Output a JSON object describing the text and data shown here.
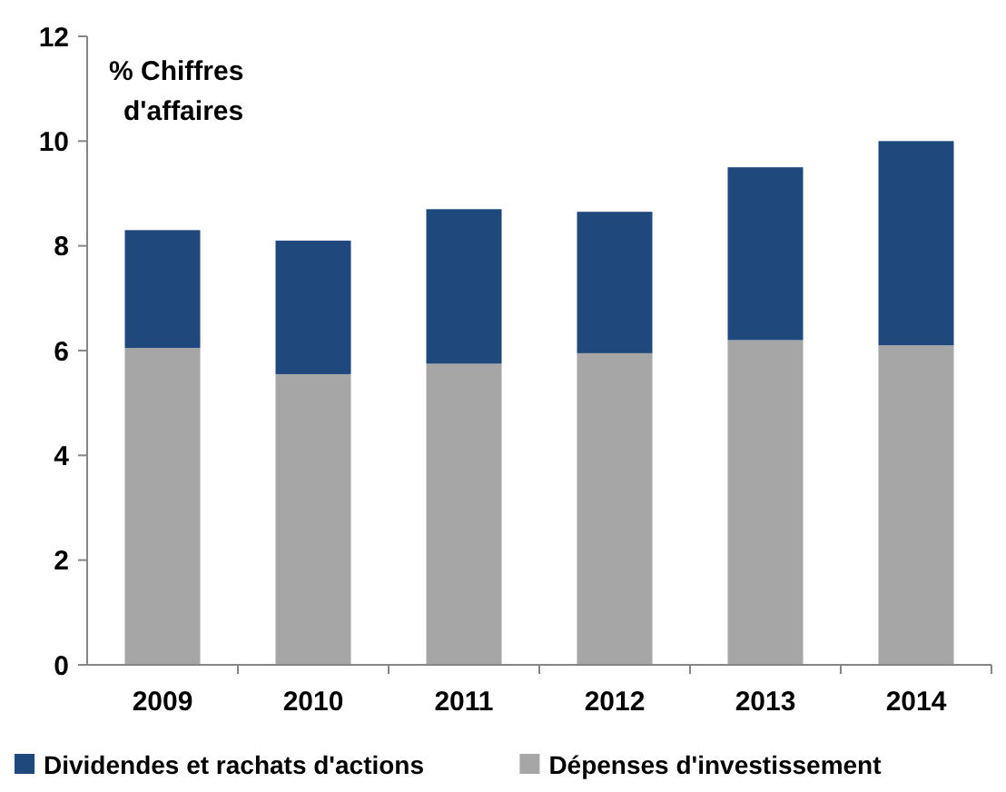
{
  "chart_data": {
    "type": "bar",
    "ylabel": "% Chiffres d'affaires",
    "categories": [
      "2009",
      "2010",
      "2011",
      "2012",
      "2013",
      "2014"
    ],
    "series": [
      {
        "name": "Dépenses d'investissement",
        "color": "#a6a6a6",
        "values": [
          6.05,
          5.55,
          5.75,
          5.95,
          6.2,
          6.1
        ]
      },
      {
        "name": "Dividendes et rachats d'actions",
        "color": "#1f497d",
        "values": [
          2.25,
          2.55,
          2.95,
          2.7,
          3.3,
          3.9
        ]
      }
    ],
    "stacked": true,
    "ylim": [
      0,
      12
    ],
    "yticks": [
      0,
      2,
      4,
      6,
      8,
      10,
      12
    ],
    "grid": false,
    "legend": "bottom"
  }
}
